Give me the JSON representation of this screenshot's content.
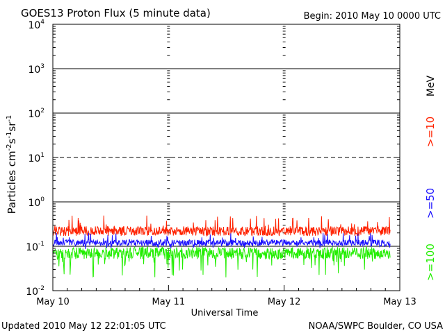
{
  "title": "GOES13 Proton Flux (5 minute data)",
  "begin_label": "Begin: 2010 May 10 0000 UTC",
  "updated_label": "Updated 2010 May 12 22:01:05 UTC",
  "credit_label": "NOAA/SWPC Boulder, CO USA",
  "colors": {
    "ge10": "#ff2200",
    "ge50": "#1a10ff",
    "ge100": "#22ee00",
    "axis": "#000000"
  },
  "chart_data": {
    "type": "line",
    "title": "GOES13 Proton Flux (5 minute data)",
    "xlabel": "Universal Time",
    "ylabel": "Particles cm⁻²s⁻¹sr⁻¹",
    "ylabel_parts": {
      "base": "Particles cm",
      "e1": "-2",
      "m1": "s",
      "e2": "-1",
      "m2": "sr",
      "e3": "-1"
    },
    "y_scale": "log",
    "ylim": [
      0.01,
      10000
    ],
    "xlim": [
      "2010-05-10",
      "2010-05-13"
    ],
    "x_ticks": [
      "May 10",
      "May 11",
      "May 12",
      "May 13"
    ],
    "y_ticks": [
      {
        "value": 0.01,
        "base": "10",
        "exp": "-2"
      },
      {
        "value": 0.1,
        "base": "10",
        "exp": "-1"
      },
      {
        "value": 1,
        "base": "10",
        "exp": "0"
      },
      {
        "value": 10,
        "base": "10",
        "exp": "1"
      },
      {
        "value": 100,
        "base": "10",
        "exp": "2"
      },
      {
        "value": 1000,
        "base": "10",
        "exp": "3"
      },
      {
        "value": 10000,
        "base": "10",
        "exp": "4"
      }
    ],
    "threshold_lines": [
      {
        "value": 0.1,
        "style": "solid"
      },
      {
        "value": 1,
        "style": "solid"
      },
      {
        "value": 10,
        "style": "dashed"
      },
      {
        "value": 100,
        "style": "solid"
      },
      {
        "value": 1000,
        "style": "solid"
      }
    ],
    "data_end": "2010-05-12 22:01",
    "series": [
      {
        "name": ">=10",
        "unit": "MeV",
        "typical": 0.22,
        "range": [
          0.12,
          0.5
        ]
      },
      {
        "name": ">=50",
        "typical": 0.12,
        "range": [
          0.08,
          0.2
        ]
      },
      {
        "name": ">=100",
        "typical": 0.07,
        "range": [
          0.02,
          0.12
        ]
      }
    ],
    "legend_unit": "MeV",
    "legend_position": "right"
  }
}
